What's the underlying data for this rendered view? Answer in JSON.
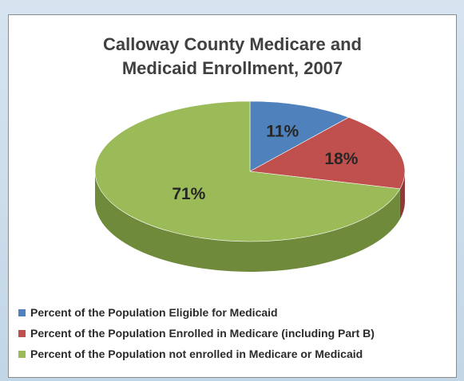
{
  "chart_data": {
    "type": "pie",
    "title_lines": [
      "Calloway County Medicare and",
      "Medicaid Enrollment, 2007"
    ],
    "legend_position": "bottom",
    "slices": [
      {
        "label": "Percent of the Population Eligible for Medicaid",
        "value": 11,
        "display": "11%",
        "color": "#4f81bd",
        "side": "#3a6290"
      },
      {
        "label": "Percent of the Population Enrolled in Medicare (including Part B)",
        "value": 18,
        "display": "18%",
        "color": "#c0504d",
        "side": "#8e3a38"
      },
      {
        "label": "Percent of the Population not enrolled in Medicare or Medicaid",
        "value": 71,
        "display": "71%",
        "color": "#9bbb59",
        "side": "#6f8a3b"
      }
    ]
  }
}
